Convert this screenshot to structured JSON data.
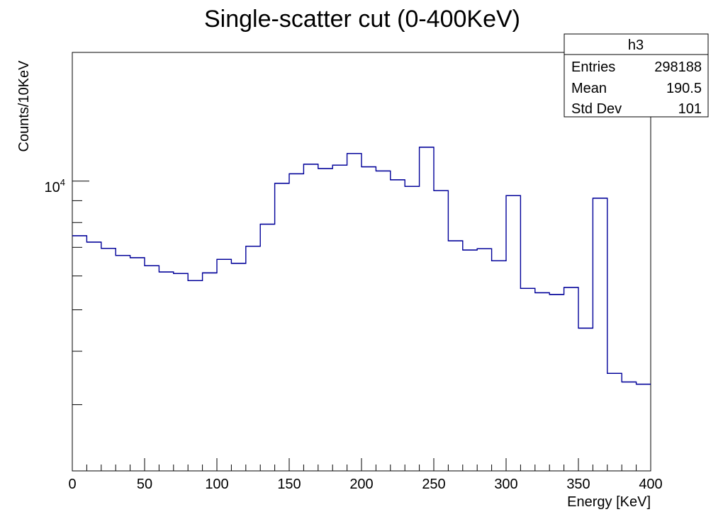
{
  "chart_data": {
    "type": "bar",
    "title": "Single-scatter cut (0-400KeV)",
    "xlabel": "Energy [KeV]",
    "ylabel": "Counts/10KeV",
    "xlim": [
      0,
      400
    ],
    "ylim": [
      2100,
      20000
    ],
    "yscale": "log",
    "grid": false,
    "legend": "none",
    "line_color": "#000099",
    "x_ticks": [
      "0",
      "50",
      "100",
      "150",
      "200",
      "250",
      "300",
      "350",
      "400"
    ],
    "y_tick_label": {
      "base": "10",
      "exponent": "4"
    },
    "bins": {
      "x_low": [
        0,
        10,
        20,
        30,
        40,
        50,
        60,
        70,
        80,
        90,
        100,
        110,
        120,
        130,
        140,
        150,
        160,
        170,
        180,
        190,
        200,
        210,
        220,
        230,
        240,
        250,
        260,
        270,
        280,
        290,
        300,
        310,
        320,
        330,
        340,
        350,
        360,
        370,
        380,
        390
      ],
      "values": [
        7450,
        7200,
        6960,
        6700,
        6620,
        6340,
        6130,
        6080,
        5850,
        6100,
        6560,
        6420,
        7040,
        7930,
        9880,
        10400,
        10950,
        10700,
        10900,
        11600,
        10800,
        10560,
        10070,
        9720,
        12000,
        9500,
        7250,
        6900,
        6950,
        6510,
        9250,
        5610,
        5480,
        5430,
        5640,
        4530,
        9120,
        3550,
        3390,
        3350
      ]
    },
    "stats": {
      "name": "h3",
      "rows": [
        {
          "label": "Entries",
          "value": "298188"
        },
        {
          "label": "Mean",
          "value": "190.5"
        },
        {
          "label": "Std Dev",
          "value": "101"
        }
      ]
    }
  }
}
